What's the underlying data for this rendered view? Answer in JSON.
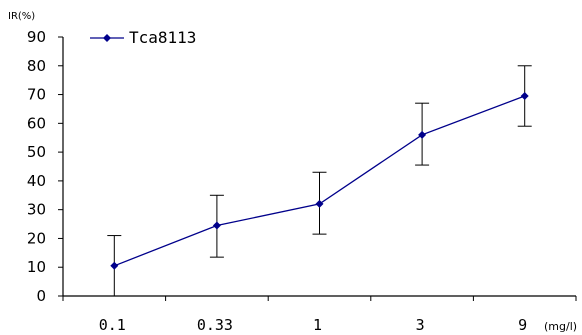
{
  "chart_data": {
    "type": "line",
    "ylabel": "IR(%)",
    "xlabel": "(mg/l)",
    "categories": [
      "0.1",
      "0.33",
      "1",
      "3",
      "9"
    ],
    "ylim": [
      0,
      90
    ],
    "yticks": [
      0,
      10,
      20,
      30,
      40,
      50,
      60,
      70,
      80,
      90
    ],
    "grid": false,
    "legend_position": "top-left",
    "series": [
      {
        "name": "Tca8113",
        "values": [
          10.5,
          24.5,
          32,
          56,
          69.5
        ],
        "error_low": [
          0,
          13.5,
          21.5,
          45.5,
          59
        ],
        "error_high": [
          21,
          35,
          43,
          67,
          80
        ],
        "color": "#00008b"
      }
    ]
  }
}
